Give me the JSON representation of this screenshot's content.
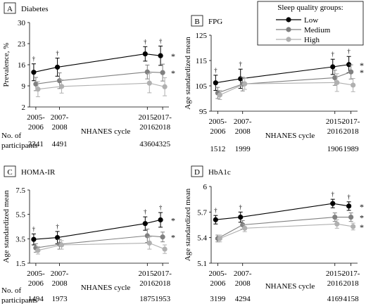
{
  "legend": {
    "title": "Sleep quality groups:",
    "placement": "top-right",
    "items": [
      {
        "label": "Low",
        "color": "#000000"
      },
      {
        "label": "Medium",
        "color": "#808080"
      },
      {
        "label": "High",
        "color": "#b0b0b0"
      }
    ]
  },
  "x_axis_title": "NHANES cycle",
  "participants_label": "No. of participants",
  "markers": {
    "dagger": "†",
    "asterisk": "*"
  },
  "chart_data": [
    {
      "type": "line",
      "panel_letter": "A",
      "title": "Diabetes",
      "ylabel": "Prevalence, %",
      "xlabel": "NHANES cycle",
      "x": [
        "2005-2006",
        "2007-2008",
        "2015-2016",
        "2017-2018"
      ],
      "ylim": [
        2,
        30
      ],
      "yticks": [
        2,
        9,
        16,
        23,
        30
      ],
      "participants": [
        "3341",
        "4491",
        "4360",
        "4325"
      ],
      "series": [
        {
          "name": "Low",
          "color": "#000000",
          "values": [
            13.5,
            15.2,
            19.6,
            19.0
          ],
          "error": [
            2.8,
            3.0,
            2.4,
            3.2
          ],
          "asterisk": true
        },
        {
          "name": "Medium",
          "color": "#808080",
          "values": [
            9.6,
            10.7,
            13.6,
            13.4
          ],
          "error": [
            2.2,
            2.6,
            2.3,
            2.8
          ],
          "asterisk": true
        },
        {
          "name": "High",
          "color": "#b0b0b0",
          "values": [
            7.9,
            8.8,
            9.9,
            8.7
          ],
          "error": [
            2.5,
            2.2,
            3.2,
            3.0
          ],
          "asterisk": false
        }
      ]
    },
    {
      "type": "line",
      "panel_letter": "B",
      "title": "FPG",
      "ylabel": "Age standardized mean",
      "xlabel": "NHANES cycle",
      "x": [
        "2005-2006",
        "2007-2008",
        "2015-2016",
        "2017-2018"
      ],
      "ylim": [
        95,
        125
      ],
      "yticks": [
        95,
        105,
        115,
        125
      ],
      "participants": [
        "1512",
        "1999",
        "1906",
        "1989"
      ],
      "series": [
        {
          "name": "Low",
          "color": "#000000",
          "values": [
            106.2,
            107.8,
            112.5,
            113.4
          ],
          "error": [
            3.0,
            3.8,
            3.0,
            3.2
          ],
          "asterisk": true
        },
        {
          "name": "Medium",
          "color": "#808080",
          "values": [
            102.2,
            105.7,
            108.2,
            110.5
          ],
          "error": [
            2.2,
            2.7,
            3.0,
            2.8
          ],
          "asterisk": true
        },
        {
          "name": "High",
          "color": "#b0b0b0",
          "values": [
            101.4,
            105.8,
            106.3,
            105.3
          ],
          "error": [
            1.8,
            2.2,
            3.5,
            2.6
          ],
          "asterisk": false
        }
      ]
    },
    {
      "type": "line",
      "panel_letter": "C",
      "title": "HOMA-IR",
      "ylabel": "Age standardized mean",
      "xlabel": "NHANES cycle",
      "x": [
        "2005-2006",
        "2007-2008",
        "2015-2016",
        "2017-2018"
      ],
      "ylim": [
        1.5,
        7.5
      ],
      "yticks": [
        1.5,
        3.5,
        5.5,
        7.5
      ],
      "participants": [
        "1494",
        "1973",
        "1875",
        "1953"
      ],
      "series": [
        {
          "name": "Low",
          "color": "#000000",
          "values": [
            3.45,
            3.6,
            4.75,
            5.05
          ],
          "error": [
            0.45,
            0.5,
            0.55,
            0.6
          ],
          "asterisk": true
        },
        {
          "name": "Medium",
          "color": "#808080",
          "values": [
            2.75,
            3.05,
            3.75,
            3.65
          ],
          "error": [
            0.35,
            0.4,
            0.55,
            0.4
          ],
          "asterisk": true
        },
        {
          "name": "High",
          "color": "#b0b0b0",
          "values": [
            2.55,
            3.0,
            3.15,
            2.65
          ],
          "error": [
            0.3,
            0.35,
            0.5,
            0.35
          ],
          "asterisk": false
        }
      ]
    },
    {
      "type": "line",
      "panel_letter": "D",
      "title": "HbA1c",
      "ylabel": "Age standardized mean",
      "xlabel": "NHANES cycle",
      "x": [
        "2005-2006",
        "2007-2008",
        "2015-2016",
        "2017-2018"
      ],
      "ylim": [
        5.1,
        6
      ],
      "yticks": [
        5.1,
        5.4,
        5.7,
        6
      ],
      "participants": [
        "3199",
        "4294",
        "4169",
        "4158"
      ],
      "series": [
        {
          "name": "Low",
          "color": "#000000",
          "values": [
            5.61,
            5.64,
            5.8,
            5.77
          ],
          "error": [
            0.05,
            0.06,
            0.05,
            0.05
          ],
          "asterisk": true
        },
        {
          "name": "Medium",
          "color": "#808080",
          "values": [
            5.39,
            5.55,
            5.64,
            5.64
          ],
          "error": [
            0.04,
            0.05,
            0.05,
            0.05
          ],
          "asterisk": true
        },
        {
          "name": "High",
          "color": "#b0b0b0",
          "values": [
            5.39,
            5.51,
            5.56,
            5.53
          ],
          "error": [
            0.04,
            0.04,
            0.05,
            0.04
          ],
          "asterisk": true
        }
      ]
    }
  ]
}
